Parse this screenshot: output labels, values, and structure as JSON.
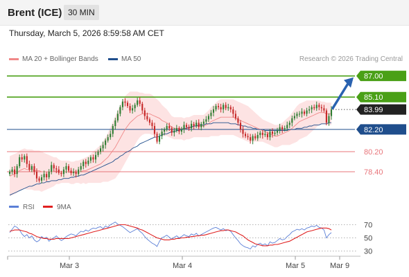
{
  "header": {
    "instrument": "Brent (ICE)",
    "interval": "30 MIN"
  },
  "datetime": "Thursday, March 5, 2026 8:59:58 AM CET",
  "legend": {
    "ma20_label": "MA 20 + Bollinger Bands",
    "ma20_color": "#f08888",
    "ma50_label": "MA 50",
    "ma50_color": "#1f4e8c"
  },
  "credit": "Research © 2026 Trading Central",
  "colors": {
    "candle_up": "#2e7d32",
    "candle_down": "#c62828",
    "bollinger_fill": "#fde3e3",
    "resistance": "#4aa017",
    "pivot": "#1f4e8c",
    "support": "#e8747a",
    "current_price_bg": "#222222",
    "arrow": "#2a62b0",
    "rsi": "#5b7fd6",
    "rsi_ma": "#e02020"
  },
  "chart_data": [
    {
      "type": "candlestick",
      "y_range": [
        76.1,
        87.6
      ],
      "x_labels": [
        "Mar 3",
        "Mar 4",
        "Mar 5",
        "Mar 9"
      ],
      "current_price": {
        "label": "83.99",
        "value": 83.99
      },
      "levels": [
        {
          "label": "87.00",
          "value": 87.0,
          "kind": "resistance",
          "boxed": true
        },
        {
          "label": "85.10",
          "value": 85.1,
          "kind": "resistance",
          "boxed": true
        },
        {
          "label": "82.20",
          "value": 82.2,
          "kind": "pivot",
          "boxed": true
        },
        {
          "label": "80.20",
          "value": 80.2,
          "kind": "support",
          "boxed": false
        },
        {
          "label": "78.40",
          "value": 78.4,
          "kind": "support",
          "boxed": false
        }
      ],
      "close": [
        78.4,
        78.6,
        78.2,
        78.9,
        79.7,
        79.5,
        79.8,
        79.1,
        78.6,
        78.9,
        78.4,
        77.8,
        77.6,
        77.9,
        78.2,
        77.9,
        78.4,
        79.0,
        78.7,
        78.6,
        78.3,
        78.2,
        78.6,
        78.9,
        78.5,
        78.3,
        78.4,
        78.2,
        78.6,
        78.9,
        79.3,
        79.1,
        79.4,
        79.7,
        79.5,
        79.9,
        80.2,
        80.5,
        80.8,
        81.2,
        81.5,
        81.8,
        82.5,
        83.0,
        83.6,
        84.2,
        84.7,
        84.6,
        84.3,
        83.9,
        84.1,
        84.4,
        84.8,
        84.5,
        83.9,
        83.4,
        83.1,
        82.8,
        82.5,
        81.8,
        81.1,
        81.6,
        82.0,
        82.2,
        82.5,
        82.3,
        81.9,
        82.1,
        82.3,
        82.0,
        82.2,
        82.6,
        82.4,
        82.3,
        82.7,
        82.5,
        82.8,
        82.4,
        82.7,
        82.9,
        83.1,
        83.4,
        83.7,
        84.0,
        84.3,
        84.2,
        84.0,
        84.4,
        84.1,
        84.2,
        84.0,
        83.6,
        83.2,
        82.8,
        82.2,
        81.8,
        81.6,
        81.5,
        81.2,
        81.6,
        81.4,
        81.7,
        81.9,
        81.7,
        81.8,
        81.5,
        82.0,
        81.8,
        81.9,
        82.1,
        82.4,
        82.2,
        82.3,
        82.6,
        82.8,
        83.2,
        83.4,
        83.6,
        83.6,
        83.8,
        83.6,
        83.9,
        84.0,
        84.2,
        84.1,
        84.4,
        84.2,
        84.1,
        83.9,
        82.8,
        83.4,
        83.99
      ],
      "ma20": [
        78.0,
        78.1,
        78.2,
        78.3,
        78.5,
        78.6,
        78.7,
        78.6,
        78.6,
        78.6,
        78.5,
        78.5,
        78.5,
        78.4,
        78.4,
        78.4,
        78.4,
        78.4,
        78.4,
        78.5,
        78.4,
        78.4,
        78.4,
        78.4,
        78.4,
        78.3,
        78.3,
        78.4,
        78.4,
        78.4,
        78.5,
        78.5,
        78.6,
        78.7,
        78.8,
        78.9,
        79.0,
        79.1,
        79.3,
        79.5,
        79.7,
        80.0,
        80.3,
        80.6,
        81.0,
        81.4,
        81.8,
        82.2,
        82.5,
        82.8,
        83.0,
        83.2,
        83.4,
        83.5,
        83.6,
        83.6,
        83.6,
        83.6,
        83.5,
        83.4,
        83.3,
        83.2,
        83.0,
        82.9,
        82.8,
        82.6,
        82.4,
        82.3,
        82.3,
        82.3,
        82.3,
        82.2,
        82.3,
        82.3,
        82.4,
        82.5,
        82.5,
        82.5,
        82.5,
        82.5,
        82.6,
        82.7,
        82.9,
        83.0,
        83.1,
        83.2,
        83.3,
        83.3,
        83.3,
        83.3,
        83.3,
        83.3,
        83.2,
        83.1,
        83.0,
        82.9,
        82.8,
        82.7,
        82.6,
        82.5,
        82.4,
        82.3,
        82.2,
        82.1,
        82.0,
        81.9,
        81.8,
        81.7,
        81.6,
        81.6,
        81.7,
        81.8,
        81.9,
        82.0,
        82.1,
        82.3,
        82.5,
        82.7,
        82.9,
        83.0,
        83.1,
        83.2,
        83.3,
        83.4,
        83.5,
        83.6,
        83.7,
        83.7,
        83.7,
        83.6,
        83.6,
        83.6
      ],
      "ma50": [
        76.3,
        76.4,
        76.5,
        76.6,
        76.7,
        76.8,
        76.9,
        77.0,
        77.1,
        77.1,
        77.2,
        77.3,
        77.3,
        77.4,
        77.4,
        77.5,
        77.5,
        77.6,
        77.6,
        77.6,
        77.7,
        77.7,
        77.8,
        77.8,
        77.8,
        77.9,
        77.9,
        78.0,
        78.0,
        78.1,
        78.1,
        78.2,
        78.3,
        78.4,
        78.5,
        78.6,
        78.7,
        78.8,
        78.9,
        79.0,
        79.1,
        79.2,
        79.3,
        79.5,
        79.6,
        79.8,
        79.9,
        80.1,
        80.2,
        80.3,
        80.5,
        80.6,
        80.7,
        80.9,
        81.0,
        81.1,
        81.2,
        81.3,
        81.4,
        81.5,
        81.5,
        81.6,
        81.7,
        81.8,
        81.8,
        81.9,
        82.0,
        82.0,
        82.1,
        82.1,
        82.2,
        82.3,
        82.3,
        82.4,
        82.4,
        82.5,
        82.5,
        82.6,
        82.6,
        82.6,
        82.7,
        82.7,
        82.7,
        82.8,
        82.8,
        82.8,
        82.8,
        82.8,
        82.8,
        82.8,
        82.7,
        82.7,
        82.7,
        82.6,
        82.6,
        82.5,
        82.5,
        82.4,
        82.4,
        82.3,
        82.3,
        82.2,
        82.2,
        82.2,
        82.1,
        82.1,
        82.1,
        82.1,
        82.1,
        82.1,
        82.1,
        82.1,
        82.1,
        82.1,
        82.2,
        82.2,
        82.2,
        82.3,
        82.3,
        82.3,
        82.4,
        82.4,
        82.5,
        82.5,
        82.6,
        82.6,
        82.6,
        82.7,
        82.7,
        82.7,
        82.8,
        82.8
      ],
      "bollinger_width": [
        1.8,
        1.8,
        1.8,
        1.8,
        1.8,
        1.8,
        1.8,
        1.8,
        1.8,
        1.8,
        1.8,
        1.8,
        1.8,
        1.8,
        1.7,
        1.6,
        1.5,
        1.4,
        1.3,
        1.2,
        1.1,
        1.0,
        1.0,
        1.0,
        1.0,
        1.0,
        1.0,
        1.0,
        1.0,
        1.1,
        1.1,
        1.2,
        1.2,
        1.3,
        1.4,
        1.5,
        1.6,
        1.7,
        1.8,
        2.0,
        2.2,
        2.4,
        2.6,
        2.8,
        2.9,
        3.0,
        3.0,
        3.0,
        2.9,
        2.8,
        2.6,
        2.4,
        2.2,
        2.0,
        1.9,
        1.8,
        1.8,
        1.8,
        1.8,
        1.7,
        1.6,
        1.5,
        1.4,
        1.3,
        1.2,
        1.1,
        1.0,
        1.0,
        1.0,
        1.0,
        1.0,
        1.0,
        1.0,
        1.0,
        1.0,
        1.0,
        1.0,
        1.0,
        1.0,
        1.0,
        1.1,
        1.2,
        1.3,
        1.4,
        1.5,
        1.6,
        1.6,
        1.6,
        1.6,
        1.6,
        1.6,
        1.6,
        1.6,
        1.6,
        1.6,
        1.6,
        1.6,
        1.6,
        1.5,
        1.4,
        1.3,
        1.2,
        1.1,
        1.0,
        1.0,
        1.0,
        1.0,
        1.0,
        1.0,
        1.0,
        1.0,
        1.0,
        1.1,
        1.2,
        1.3,
        1.4,
        1.5,
        1.6,
        1.6,
        1.6,
        1.6,
        1.6,
        1.5,
        1.4,
        1.3,
        1.2,
        1.1,
        1.0,
        1.0,
        1.0,
        1.0,
        1.0
      ],
      "projection": {
        "from": 84.1,
        "to": 87.0
      }
    },
    {
      "type": "line",
      "title": "",
      "y_range": [
        20,
        80
      ],
      "y_ticks": [
        70,
        50,
        30
      ],
      "series": [
        {
          "name": "RSI",
          "color": "#5b7fd6",
          "values": [
            58,
            63,
            68,
            66,
            62,
            56,
            52,
            55,
            50,
            53,
            47,
            44,
            46,
            52,
            49,
            51,
            45,
            48,
            50,
            53,
            49,
            46,
            48,
            52,
            54,
            56,
            55,
            53,
            57,
            60,
            59,
            62,
            60,
            63,
            65,
            64,
            66,
            67,
            64,
            68,
            66,
            70,
            72,
            74,
            71,
            69,
            67,
            64,
            61,
            58,
            60,
            62,
            64,
            60,
            57,
            52,
            48,
            45,
            42,
            40,
            37,
            45,
            50,
            52,
            54,
            51,
            48,
            51,
            53,
            50,
            52,
            55,
            53,
            52,
            56,
            54,
            57,
            53,
            55,
            57,
            59,
            61,
            63,
            65,
            66,
            64,
            62,
            64,
            61,
            62,
            60,
            55,
            50,
            46,
            41,
            38,
            36,
            35,
            33,
            38,
            36,
            40,
            42,
            39,
            41,
            38,
            44,
            42,
            43,
            46,
            49,
            47,
            48,
            52,
            55,
            59,
            61,
            63,
            62,
            64,
            62,
            65,
            66,
            68,
            67,
            69,
            66,
            65,
            62,
            50,
            55,
            58
          ]
        },
        {
          "name": "9MA",
          "color": "#e02020",
          "values": [
            60,
            61,
            62,
            62,
            62,
            61,
            60,
            59,
            57,
            56,
            54,
            52,
            51,
            50,
            49,
            49,
            48,
            48,
            48,
            49,
            49,
            49,
            49,
            49,
            49,
            50,
            51,
            52,
            53,
            54,
            55,
            56,
            57,
            58,
            59,
            60,
            61,
            62,
            63,
            64,
            65,
            66,
            67,
            68,
            69,
            70,
            70,
            70,
            69,
            68,
            67,
            66,
            65,
            63,
            62,
            60,
            58,
            56,
            54,
            52,
            50,
            49,
            48,
            47,
            47,
            47,
            48,
            48,
            49,
            49,
            50,
            50,
            51,
            51,
            52,
            52,
            53,
            53,
            54,
            54,
            55,
            56,
            57,
            58,
            59,
            60,
            61,
            61,
            62,
            62,
            61,
            60,
            59,
            57,
            55,
            53,
            50,
            47,
            45,
            43,
            41,
            40,
            39,
            38,
            38,
            38,
            39,
            39,
            40,
            40,
            41,
            42,
            43,
            44,
            45,
            47,
            49,
            51,
            53,
            55,
            57,
            59,
            60,
            61,
            62,
            63,
            64,
            65,
            65,
            65,
            64,
            62
          ]
        }
      ]
    }
  ]
}
